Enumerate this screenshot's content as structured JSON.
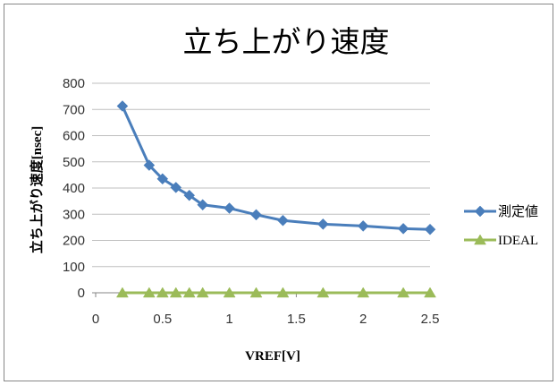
{
  "chart_data": {
    "type": "line",
    "title": "立ち上がり速度",
    "xlabel": "VREF[V]",
    "ylabel": "立ち上がり速度[nsec]",
    "xlim": [
      0,
      2.5
    ],
    "ylim": [
      0,
      800
    ],
    "x_ticks": [
      "0",
      "0.5",
      "1",
      "1.5",
      "2",
      "2.5"
    ],
    "y_ticks": [
      "0",
      "100",
      "200",
      "300",
      "400",
      "500",
      "600",
      "700",
      "800"
    ],
    "grid": true,
    "legend": "right",
    "x": [
      0.2,
      0.4,
      0.5,
      0.6,
      0.7,
      0.8,
      1.0,
      1.2,
      1.4,
      1.7,
      2.0,
      2.3,
      2.5
    ],
    "series": [
      {
        "name": "測定値",
        "color": "#4a7ebb",
        "marker": "diamond",
        "values": [
          713,
          487,
          435,
          402,
          372,
          336,
          323,
          298,
          276,
          262,
          255,
          245,
          242
        ]
      },
      {
        "name": "IDEAL",
        "color": "#9bbb59",
        "marker": "triangle",
        "values": [
          0,
          0,
          0,
          0,
          0,
          0,
          0,
          0,
          0,
          0,
          0,
          0,
          0
        ]
      }
    ]
  }
}
